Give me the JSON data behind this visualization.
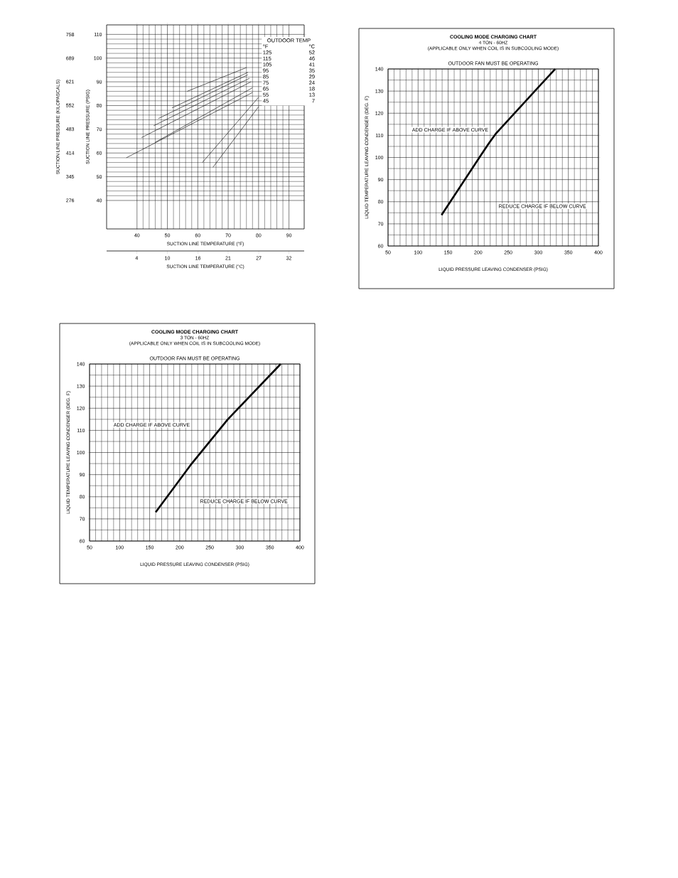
{
  "chart_data": [
    {
      "type": "line",
      "xlabel": "SUCTION LINE TEMPERATURE (°F)",
      "ylabel": "SUCTION LINE PRESSURE (PSIG)",
      "y2label": "SUCTION LINE PRESSURE (KILOPASCALS)",
      "x2label": "SUCTION LINE TEMPERATURE (°C)",
      "annotations": [
        "OUTDOOR TEMP",
        "°F",
        "°C",
        "125",
        "52",
        "115",
        "46",
        "105",
        "41",
        "95",
        "35",
        "85",
        "29",
        "75",
        "24",
        "65",
        "18",
        "55",
        "13",
        "45",
        "7"
      ],
      "series": [
        {
          "color": "#000000",
          "x": [
            56.5,
            76
          ],
          "values": [
            86,
            96
          ]
        },
        {
          "color": "#000000",
          "x": [
            51.5,
            76.5
          ],
          "values": [
            79,
            94
          ]
        },
        {
          "color": "#000000",
          "x": [
            47,
            76.5
          ],
          "values": [
            74.5,
            93
          ]
        },
        {
          "color": "#000000",
          "x": [
            45.5,
            77
          ],
          "values": [
            71.5,
            91.5
          ]
        },
        {
          "color": "#000000",
          "x": [
            41.5,
            77.5
          ],
          "values": [
            66.5,
            90
          ]
        },
        {
          "color": "#000000",
          "x": [
            46,
            78
          ],
          "values": [
            64.5,
            87.5
          ]
        },
        {
          "color": "#000000",
          "x": [
            36.5,
            78
          ],
          "values": [
            58,
            85.5
          ]
        },
        {
          "color": "#000000",
          "x": [
            61.5,
            80
          ],
          "values": [
            56,
            83.5
          ]
        },
        {
          "color": "#000000",
          "x": [
            65,
            80
          ],
          "values": [
            54,
            79.5
          ]
        }
      ],
      "xlim": [
        30,
        95
      ],
      "xticks": [
        40,
        50,
        60,
        70,
        80,
        90
      ],
      "ylim": [
        28,
        114
      ],
      "yticks": [
        40,
        50,
        60,
        70,
        80,
        90,
        100,
        110
      ],
      "y2lim": [
        193.06,
        786.03
      ],
      "y2ticks": [
        276,
        345,
        414,
        483,
        552,
        621,
        689,
        758
      ],
      "x2lim": [
        -1.1,
        35
      ],
      "x2ticks": [
        {
          "value": 4.4,
          "label": "4"
        },
        10,
        {
          "value": 15.6,
          "label": "16"
        },
        {
          "value": 21.1,
          "label": "21"
        },
        {
          "value": 26.7,
          "label": "27"
        },
        {
          "value": 32.2,
          "label": "32"
        }
      ],
      "grid": true
    },
    {
      "type": "line",
      "title": "COOLING MODE CHARGING CHART",
      "subtitle": "4 TON - 60HZ",
      "xlabel": "LIQUID PRESSURE LEAVING CONDENSER (PSIG)",
      "ylabel": "LIQUID TEMPERATURE LEAVING CONDENSER (DEG. F)",
      "annotations": [
        "(APPLICABLE ONLY WHEN COIL IS IN SUBCOOLING MODE)",
        "OUTDOOR FAN MUST BE OPERATING",
        "ADD CHARGE IF ABOVE CURVE",
        "REDUCE CHARGE IF BELOW CURVE"
      ],
      "series": [
        {
          "color": "#000000",
          "x": [
            139,
            202,
            218,
            230,
            328
          ],
          "values": [
            74,
            100,
            106.5,
            111,
            140
          ]
        }
      ],
      "xlim": [
        50,
        400
      ],
      "xticks": [
        50,
        100,
        150,
        200,
        250,
        300,
        350,
        400
      ],
      "ylim": [
        60,
        140
      ],
      "yticks": [
        60,
        70,
        80,
        90,
        100,
        110,
        120,
        130,
        140
      ],
      "grid": true
    },
    {
      "type": "line",
      "title": "COOLING MODE CHARGING CHART",
      "subtitle": "3 TON - 60HZ",
      "xlabel": "LIQUID PRESSURE LEAVING CONDENSER (PSIG)",
      "ylabel": "LIQUID TEMPERATURE LEAVING CONDENSER (DEG. F)",
      "annotations": [
        "(APPLICABLE ONLY WHEN COIL IS IN SUBCOOLING MODE)",
        "OUTDOOR FAN MUST BE OPERATING",
        "ADD CHARGE IF ABOVE CURVE",
        "REDUCE CHARGE IF BELOW CURVE"
      ],
      "series": [
        {
          "color": "#000000",
          "x": [
            160,
            220,
            280,
            368
          ],
          "values": [
            73,
            95,
            115,
            140
          ]
        }
      ],
      "xlim": [
        50,
        400
      ],
      "xticks": [
        50,
        100,
        150,
        200,
        250,
        300,
        350,
        400
      ],
      "ylim": [
        60,
        140
      ],
      "yticks": [
        60,
        70,
        80,
        90,
        100,
        110,
        120,
        130,
        140
      ],
      "grid": true
    }
  ]
}
